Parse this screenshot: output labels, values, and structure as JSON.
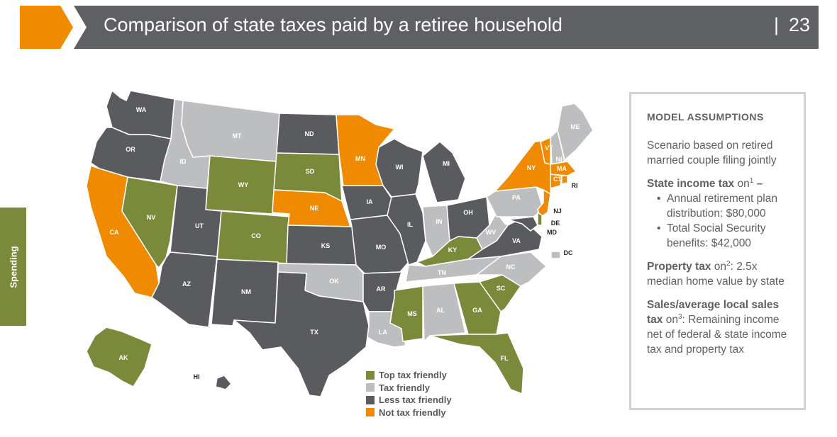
{
  "header": {
    "title": "Comparison of state taxes paid by a retiree household",
    "page_number": "23",
    "separator": "|"
  },
  "side_tab": {
    "label": "Spending"
  },
  "colors": {
    "top": "#7a8a3a",
    "tax": "#bdbec0",
    "less": "#595b5f",
    "not": "#f08a00",
    "accent_orange": "#f08a00",
    "header_gray": "#5f6064"
  },
  "legend": [
    {
      "label": "Top tax friendly",
      "category": "top"
    },
    {
      "label": "Tax friendly",
      "category": "tax"
    },
    {
      "label": "Less tax friendly",
      "category": "less"
    },
    {
      "label": "Not tax friendly",
      "category": "not"
    }
  ],
  "states": [
    {
      "abbr": "WA",
      "category": "less"
    },
    {
      "abbr": "OR",
      "category": "less"
    },
    {
      "abbr": "CA",
      "category": "not"
    },
    {
      "abbr": "NV",
      "category": "top"
    },
    {
      "abbr": "ID",
      "category": "tax"
    },
    {
      "abbr": "MT",
      "category": "tax"
    },
    {
      "abbr": "WY",
      "category": "top"
    },
    {
      "abbr": "UT",
      "category": "less"
    },
    {
      "abbr": "AZ",
      "category": "less"
    },
    {
      "abbr": "CO",
      "category": "top"
    },
    {
      "abbr": "NM",
      "category": "less"
    },
    {
      "abbr": "ND",
      "category": "less"
    },
    {
      "abbr": "SD",
      "category": "top"
    },
    {
      "abbr": "NE",
      "category": "not"
    },
    {
      "abbr": "KS",
      "category": "less"
    },
    {
      "abbr": "OK",
      "category": "tax"
    },
    {
      "abbr": "TX",
      "category": "less"
    },
    {
      "abbr": "MN",
      "category": "not"
    },
    {
      "abbr": "IA",
      "category": "less"
    },
    {
      "abbr": "MO",
      "category": "less"
    },
    {
      "abbr": "AR",
      "category": "less"
    },
    {
      "abbr": "LA",
      "category": "tax"
    },
    {
      "abbr": "WI",
      "category": "less"
    },
    {
      "abbr": "IL",
      "category": "less"
    },
    {
      "abbr": "MI",
      "category": "less"
    },
    {
      "abbr": "IN",
      "category": "tax"
    },
    {
      "abbr": "OH",
      "category": "less"
    },
    {
      "abbr": "KY",
      "category": "top"
    },
    {
      "abbr": "TN",
      "category": "tax"
    },
    {
      "abbr": "MS",
      "category": "top"
    },
    {
      "abbr": "AL",
      "category": "tax"
    },
    {
      "abbr": "GA",
      "category": "top"
    },
    {
      "abbr": "FL",
      "category": "top"
    },
    {
      "abbr": "SC",
      "category": "top"
    },
    {
      "abbr": "NC",
      "category": "tax"
    },
    {
      "abbr": "VA",
      "category": "less"
    },
    {
      "abbr": "WV",
      "category": "tax"
    },
    {
      "abbr": "PA",
      "category": "tax"
    },
    {
      "abbr": "NY",
      "category": "not"
    },
    {
      "abbr": "VT",
      "category": "not"
    },
    {
      "abbr": "NH",
      "category": "tax"
    },
    {
      "abbr": "ME",
      "category": "tax"
    },
    {
      "abbr": "MA",
      "category": "not"
    },
    {
      "abbr": "CT",
      "category": "not"
    },
    {
      "abbr": "RI",
      "category": "not"
    },
    {
      "abbr": "NJ",
      "category": "not"
    },
    {
      "abbr": "DE",
      "category": "top"
    },
    {
      "abbr": "MD",
      "category": "less"
    },
    {
      "abbr": "DC",
      "category": "tax"
    },
    {
      "abbr": "AK",
      "category": "top"
    },
    {
      "abbr": "HI",
      "category": "less"
    }
  ],
  "assumptions": {
    "heading": "MODEL ASSUMPTIONS",
    "scenario": "Scenario based on retired married couple filing jointly",
    "income_tax_label": "State income tax",
    "income_tax_on": " on",
    "income_tax_sup": "1",
    "income_tax_dash": " –",
    "income_items": [
      "Annual retirement plan distribution: $80,000",
      "Total Social Security benefits: $42,000"
    ],
    "property_label": "Property tax",
    "property_on": " on",
    "property_sup": "2",
    "property_text": ": 2.5x median home value by state",
    "sales_label": "Sales/average local sales tax",
    "sales_on": " on",
    "sales_sup": "3",
    "sales_text": ": Remaining income net of federal & state income tax and property tax"
  }
}
